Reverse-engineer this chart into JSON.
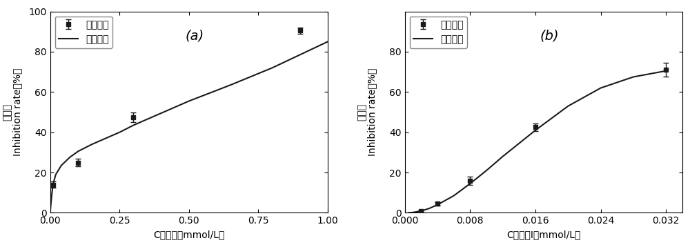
{
  "panel_a": {
    "scatter_x": [
      0.01,
      0.1,
      0.3,
      0.9
    ],
    "scatter_y": [
      14.0,
      25.0,
      47.5,
      90.5
    ],
    "scatter_yerr": [
      1.5,
      2.0,
      2.5,
      1.5
    ],
    "fit_x": [
      0.001,
      0.005,
      0.01,
      0.02,
      0.04,
      0.07,
      0.1,
      0.15,
      0.2,
      0.25,
      0.3,
      0.4,
      0.5,
      0.65,
      0.8,
      0.9,
      1.0
    ],
    "fit_y": [
      2.0,
      8.0,
      14.0,
      19.0,
      23.5,
      27.5,
      30.5,
      34.0,
      37.0,
      40.0,
      43.5,
      49.5,
      55.5,
      63.5,
      72.0,
      78.5,
      85.0
    ],
    "xlim": [
      0.0,
      1.0
    ],
    "ylim": [
      0,
      100
    ],
    "xticks": [
      0.0,
      0.25,
      0.5,
      0.75,
      1.0
    ],
    "yticks": [
      0,
      20,
      40,
      60,
      80,
      100
    ],
    "xlabel": "C血根碱（mmol/L）",
    "ylabel_cn": "抑制率",
    "ylabel_en": "Inhibition rate（%）",
    "legend1": "抑制曲线",
    "legend2": "拟合曲线",
    "label": "(a)"
  },
  "panel_b": {
    "scatter_x": [
      0.002,
      0.004,
      0.008,
      0.016,
      0.032
    ],
    "scatter_y": [
      0.8,
      4.5,
      16.0,
      42.5,
      71.0
    ],
    "scatter_yerr": [
      0.4,
      0.8,
      2.0,
      2.0,
      3.5
    ],
    "fit_x": [
      0.0005,
      0.001,
      0.002,
      0.003,
      0.004,
      0.006,
      0.008,
      0.01,
      0.012,
      0.016,
      0.02,
      0.024,
      0.028,
      0.032
    ],
    "fit_y": [
      0.05,
      0.2,
      0.9,
      2.2,
      4.0,
      8.5,
      14.5,
      21.0,
      28.0,
      41.0,
      53.0,
      62.0,
      67.5,
      70.5
    ],
    "xlim": [
      0.0,
      0.034
    ],
    "ylim": [
      0,
      100
    ],
    "xticks": [
      0.0,
      0.008,
      0.016,
      0.024,
      0.032
    ],
    "yticks": [
      0,
      20,
      40,
      60,
      80
    ],
    "xlabel": "C化合物Ⅰ（mmol/L）",
    "ylabel_cn": "抑制率",
    "ylabel_en": "Inhibition rate（%）",
    "legend1": "抑制曲线",
    "legend2": "拟合曲线",
    "label": "(b)"
  },
  "line_color": "#1a1a1a",
  "marker_color": "#1a1a1a",
  "background_color": "#ffffff",
  "font_size": 10,
  "label_font_size": 14
}
